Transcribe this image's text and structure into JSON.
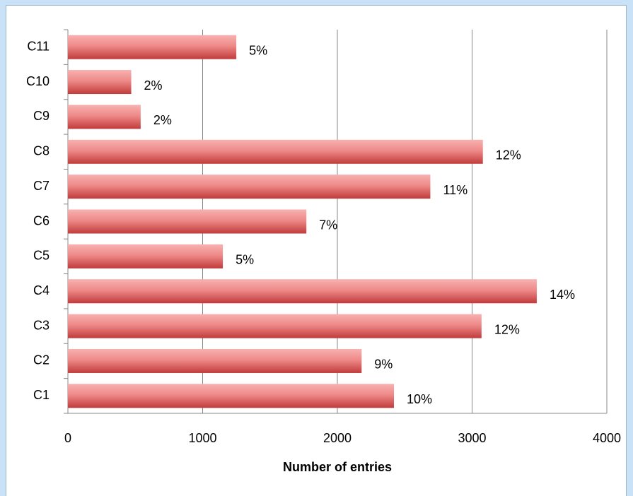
{
  "chart_data": {
    "type": "hbar",
    "categories": [
      "C1",
      "C2",
      "C3",
      "C4",
      "C5",
      "C6",
      "C7",
      "C8",
      "C9",
      "C10",
      "C11"
    ],
    "values": [
      2420,
      2180,
      3070,
      3480,
      1150,
      1770,
      2690,
      3080,
      540,
      470,
      1250
    ],
    "percent_labels": [
      "10%",
      "9%",
      "12%",
      "14%",
      "5%",
      "7%",
      "11%",
      "12%",
      "2%",
      "2%",
      "5%"
    ],
    "color": "#d9534f",
    "xlabel": "Number of entries",
    "xlim": [
      0,
      4000
    ],
    "xticks": [
      0,
      1000,
      2000,
      3000,
      4000
    ],
    "grid": true
  }
}
